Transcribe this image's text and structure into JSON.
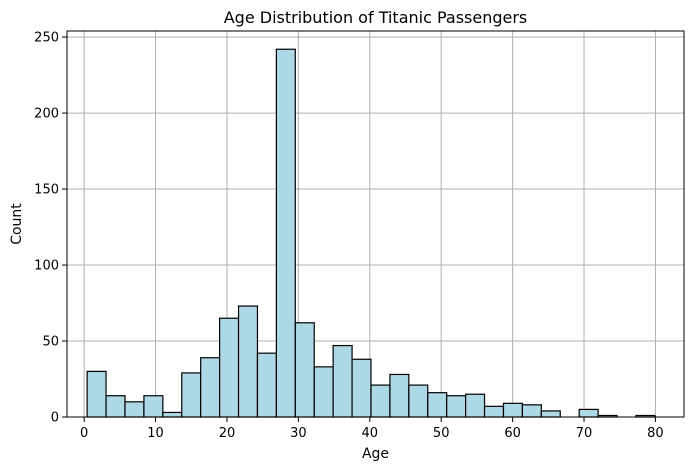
{
  "chart_data": {
    "type": "bar",
    "chart_kind": "histogram",
    "title": "Age Distribution of Titanic Passengers",
    "xlabel": "Age",
    "ylabel": "Count",
    "xlim": [
      -2.4,
      84.0
    ],
    "ylim": [
      0,
      254
    ],
    "xticks": [
      0,
      10,
      20,
      30,
      40,
      50,
      60,
      70,
      80
    ],
    "yticks": [
      0,
      50,
      100,
      150,
      200,
      250
    ],
    "grid": true,
    "bar_color": "#add8e6",
    "edge_color": "#000000",
    "bin_edges": [
      0.42,
      3.07,
      5.72,
      8.37,
      11.02,
      13.67,
      16.32,
      18.97,
      21.62,
      24.27,
      26.92,
      29.57,
      32.22,
      34.87,
      37.52,
      40.17,
      42.82,
      45.47,
      48.12,
      50.77,
      53.42,
      56.07,
      58.72,
      61.37,
      64.02,
      66.67,
      69.32,
      71.97,
      74.62,
      77.27,
      79.92
    ],
    "values": [
      30,
      14,
      10,
      14,
      3,
      29,
      39,
      65,
      73,
      42,
      242,
      62,
      33,
      47,
      38,
      21,
      28,
      21,
      16,
      14,
      15,
      7,
      9,
      8,
      4,
      0,
      5,
      1,
      0,
      1
    ]
  }
}
